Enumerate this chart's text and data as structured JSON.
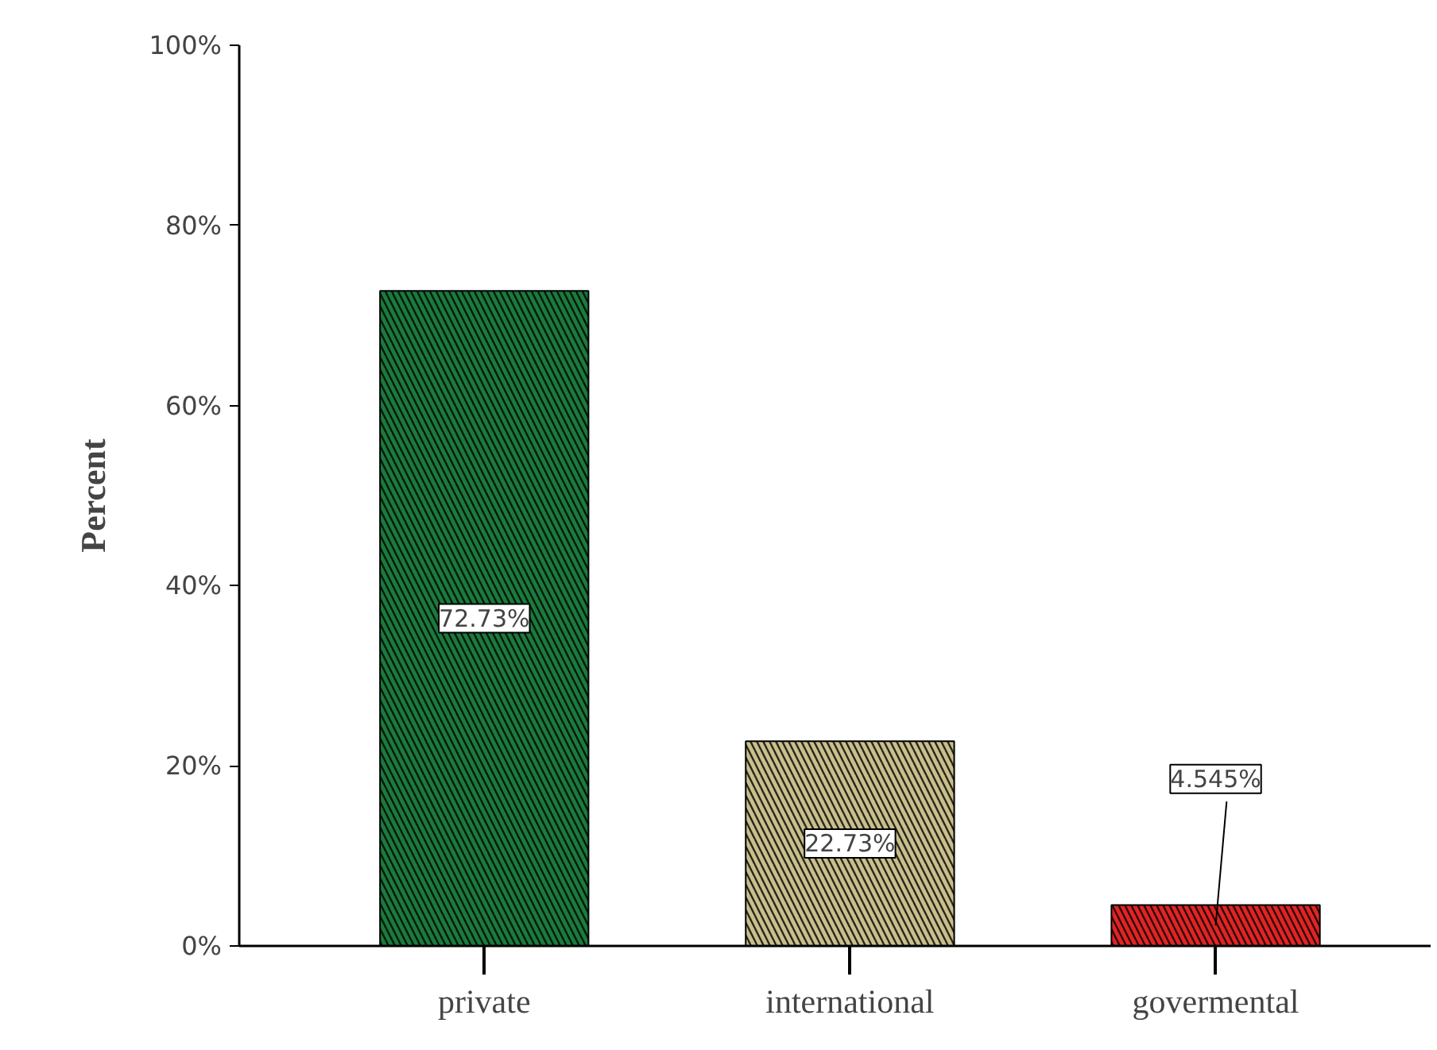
{
  "chart_data": {
    "type": "bar",
    "ylabel": "Percent",
    "categories": [
      "private",
      "international",
      "govermental"
    ],
    "values": [
      72.73,
      22.73,
      4.545
    ],
    "colors": [
      "#1b7a3c",
      "#c9bf8c",
      "#e02424"
    ],
    "value_labels": [
      "72.73%",
      "22.73%",
      "4.545%"
    ],
    "ylim": [
      0,
      100
    ],
    "yticks": [
      {
        "value": 0,
        "label": "0%"
      },
      {
        "value": 20,
        "label": "20%"
      },
      {
        "value": 40,
        "label": "40%"
      },
      {
        "value": 60,
        "label": "60%"
      },
      {
        "value": 80,
        "label": "80%"
      },
      {
        "value": 100,
        "label": "100%"
      }
    ],
    "grid": false
  }
}
